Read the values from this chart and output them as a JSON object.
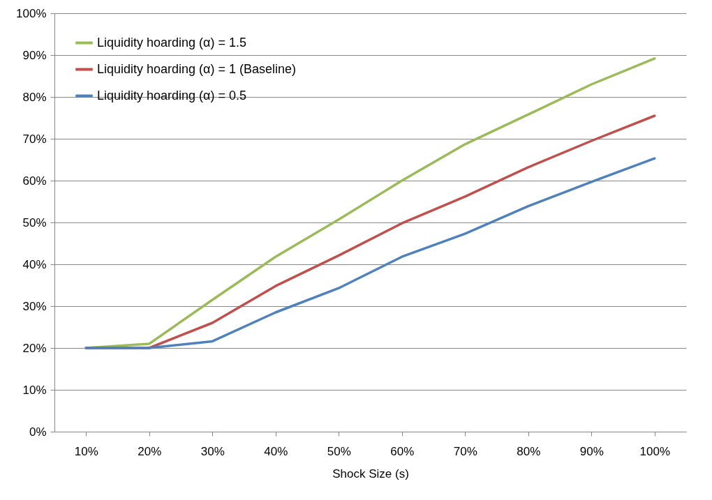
{
  "chart_data": {
    "type": "line",
    "xlabel": "Shock Size (s)",
    "categories": [
      "10%",
      "20%",
      "30%",
      "40%",
      "50%",
      "60%",
      "70%",
      "80%",
      "90%",
      "100%"
    ],
    "series": [
      {
        "name": "Liquidity hoarding (α) = 1.5",
        "color": "#9bbb59",
        "values": [
          20,
          21,
          31.5,
          41.8,
          50.7,
          60,
          68.7,
          75.8,
          83,
          89.2
        ]
      },
      {
        "name": "Liquidity hoarding (α) = 1 (Baseline)",
        "color": "#c0504d",
        "values": [
          20,
          20,
          26,
          34.8,
          42.1,
          49.8,
          56.2,
          63.2,
          69.5,
          75.5
        ]
      },
      {
        "name": "Liquidity hoarding (α) = 0.5",
        "color": "#4f81bd",
        "values": [
          20,
          20,
          21.6,
          28.5,
          34.3,
          41.8,
          47.3,
          53.9,
          59.7,
          65.3
        ]
      }
    ],
    "ylim": [
      0,
      100
    ],
    "yticks": [
      {
        "value": 0,
        "label": "0%"
      },
      {
        "value": 10,
        "label": "10%"
      },
      {
        "value": 20,
        "label": "20%"
      },
      {
        "value": 30,
        "label": "30%"
      },
      {
        "value": 40,
        "label": "40%"
      },
      {
        "value": 50,
        "label": "50%"
      },
      {
        "value": 60,
        "label": "60%"
      },
      {
        "value": 70,
        "label": "70%"
      },
      {
        "value": 80,
        "label": "80%"
      },
      {
        "value": 90,
        "label": "90%"
      },
      {
        "value": 100,
        "label": "100%"
      }
    ],
    "grid": "y",
    "legend": "top left",
    "marker": "none",
    "line_style": "solid"
  }
}
